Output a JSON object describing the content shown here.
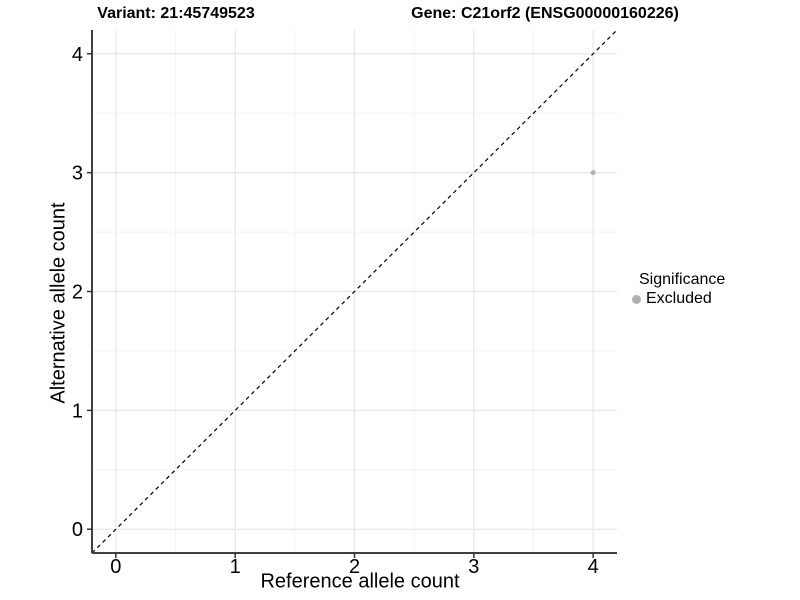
{
  "header": {
    "variant_title": "Variant: 21:45749523",
    "gene_title": "Gene: C21orf2 (ENSG00000160226)"
  },
  "legend": {
    "title": "Significance",
    "items": [
      {
        "label": "Excluded",
        "color": "#b0b0b0",
        "marker": "circle"
      }
    ]
  },
  "styles": {
    "background": "#ffffff",
    "grid_major": "#e7e7e7",
    "grid_minor": "#f3f3f3",
    "axis_line": "#404040",
    "tick_mark": "#333333",
    "tick_label": "#000000",
    "identity_line": "#000000",
    "point_color": "#b0b0b0"
  },
  "chart_data": {
    "type": "scatter",
    "title": "",
    "xlabel": "Reference allele count",
    "ylabel": "Alternative allele count",
    "xlim": [
      -0.2,
      4.2
    ],
    "ylim": [
      -0.2,
      4.2
    ],
    "xticks": [
      0,
      1,
      2,
      3,
      4
    ],
    "yticks": [
      0,
      1,
      2,
      3,
      4
    ],
    "minor_ticks": [
      0.5,
      1.5,
      2.5,
      3.5
    ],
    "grid": "major+minor",
    "legend_position": "right",
    "reference_line": {
      "kind": "identity",
      "slope": 1,
      "intercept": 0,
      "style": "dashed"
    },
    "series": [
      {
        "name": "Excluded",
        "color": "#b0b0b0",
        "point_radius": 2.5,
        "points": [
          {
            "x": 4,
            "y": 3
          }
        ]
      }
    ]
  }
}
